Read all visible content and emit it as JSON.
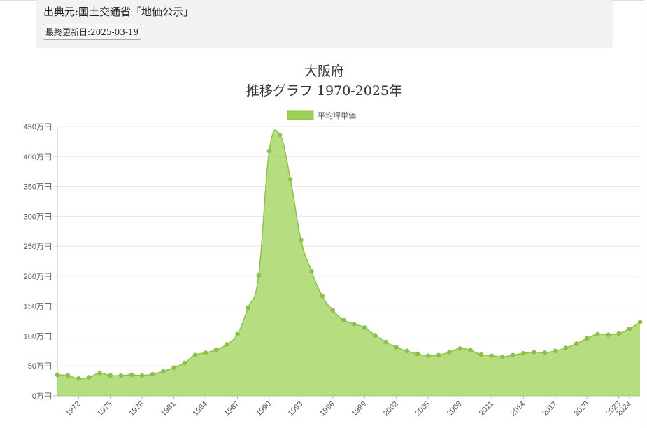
{
  "source": {
    "text": "出典元:国土交通省「地価公示」",
    "updated": "最終更新日:2025-03-19"
  },
  "chart_data": {
    "type": "area",
    "title": "大阪府",
    "subtitle": "推移グラフ 1970-2025年",
    "legend": [
      "平均坪単価"
    ],
    "legend_position": "top",
    "ylim": [
      0,
      450
    ],
    "y_ticks": [
      0,
      50,
      100,
      150,
      200,
      250,
      300,
      350,
      400,
      450
    ],
    "y_tick_suffix": "万円",
    "grid": true,
    "x_tick_labels": [
      "1972",
      "1975",
      "1978",
      "1981",
      "1984",
      "1987",
      "1990",
      "1993",
      "1996",
      "1999",
      "2002",
      "2005",
      "2008",
      "2011",
      "2014",
      "2017",
      "2020",
      "2023",
      "2024"
    ],
    "series": [
      {
        "name": "平均坪単価",
        "color": "#9ed155",
        "x": [
          1970,
          1971,
          1972,
          1973,
          1974,
          1975,
          1976,
          1977,
          1978,
          1979,
          1980,
          1981,
          1982,
          1983,
          1984,
          1985,
          1986,
          1987,
          1988,
          1989,
          1990,
          1991,
          1992,
          1993,
          1994,
          1995,
          1996,
          1997,
          1998,
          1999,
          2000,
          2001,
          2002,
          2003,
          2004,
          2005,
          2006,
          2007,
          2008,
          2009,
          2010,
          2011,
          2012,
          2013,
          2014,
          2015,
          2016,
          2017,
          2018,
          2019,
          2020,
          2021,
          2022,
          2023,
          2024,
          2025
        ],
        "values": [
          35,
          34,
          29,
          31,
          38,
          34,
          34,
          35,
          34,
          36,
          41,
          47,
          55,
          68,
          72,
          77,
          86,
          103,
          147,
          201,
          409,
          436,
          362,
          260,
          208,
          167,
          143,
          127,
          120,
          114,
          101,
          90,
          81,
          75,
          70,
          67,
          68,
          73,
          79,
          76,
          69,
          67,
          65,
          68,
          71,
          73,
          72,
          75,
          80,
          87,
          96,
          103,
          102,
          104,
          112,
          123
        ]
      }
    ]
  }
}
